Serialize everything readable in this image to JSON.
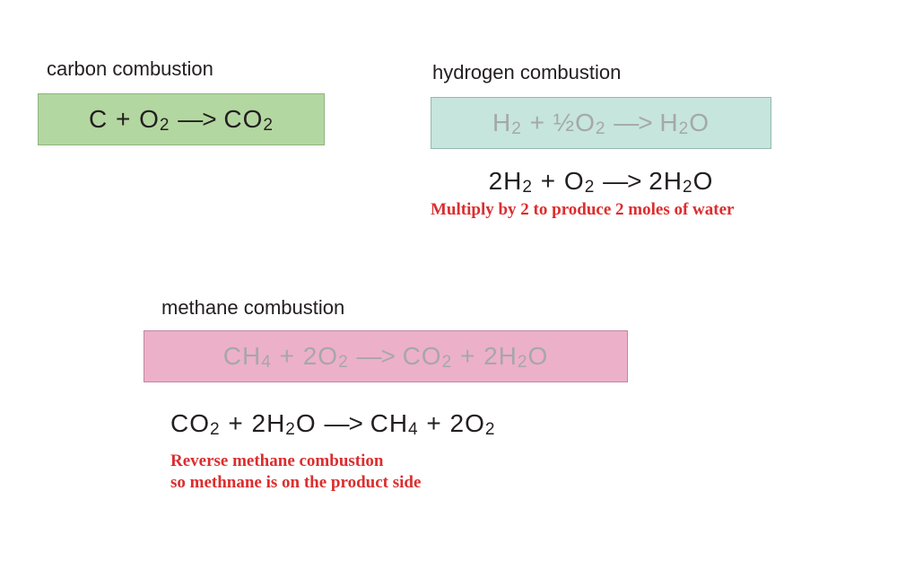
{
  "carbon": {
    "label": "carbon combustion",
    "equation": "C + O₂ —> CO₂",
    "box_bg": "#b3d7a0",
    "box_border": "#8fb37e",
    "text_color": "#231f20"
  },
  "hydrogen": {
    "label": "hydrogen combustion",
    "equation": "H₂ + ½O₂ —> H₂O",
    "box_bg": "#c5e5dd",
    "box_border": "#94b8af",
    "text_color": "#a6a7aa",
    "multiplied_eq": "2H₂ + O₂ —> 2H₂O",
    "multiplied_color": "#231f20",
    "annotation": "Multiply by 2 to produce 2 moles of water",
    "annotation_color": "#db2e2f"
  },
  "methane": {
    "label": "methane combustion",
    "equation": "CH₄ + 2O₂  —>  CO₂ + 2H₂O",
    "box_bg": "#edb0c9",
    "box_border": "#c086a1",
    "text_color": "#a6a7aa",
    "reversed_eq": "CO₂ + 2H₂O  —>  CH₄ + 2O₂",
    "reversed_color": "#231f20",
    "annotation": "Reverse methane combustion\nso methnane is on the product side",
    "annotation_color": "#db2e2f"
  }
}
